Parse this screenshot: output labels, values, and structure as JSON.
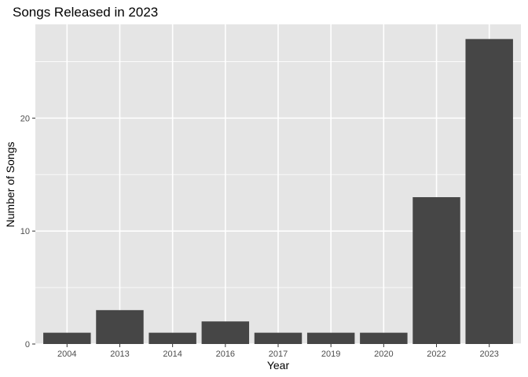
{
  "chart_data": {
    "type": "bar",
    "title": "Songs Released in 2023",
    "xlabel": "Year",
    "ylabel": "Number of Songs",
    "categories": [
      "2004",
      "2013",
      "2014",
      "2016",
      "2017",
      "2019",
      "2020",
      "2022",
      "2023"
    ],
    "values": [
      1,
      3,
      1,
      2,
      1,
      1,
      1,
      13,
      27
    ],
    "ylim": [
      0,
      28.3
    ],
    "yticks": [
      0,
      10,
      20
    ],
    "grid": true,
    "legend": "none",
    "colors": {
      "panel": "#e5e5e5",
      "grid": "#ffffff",
      "bar": "#464646",
      "tick": "#4d4d4d"
    }
  }
}
